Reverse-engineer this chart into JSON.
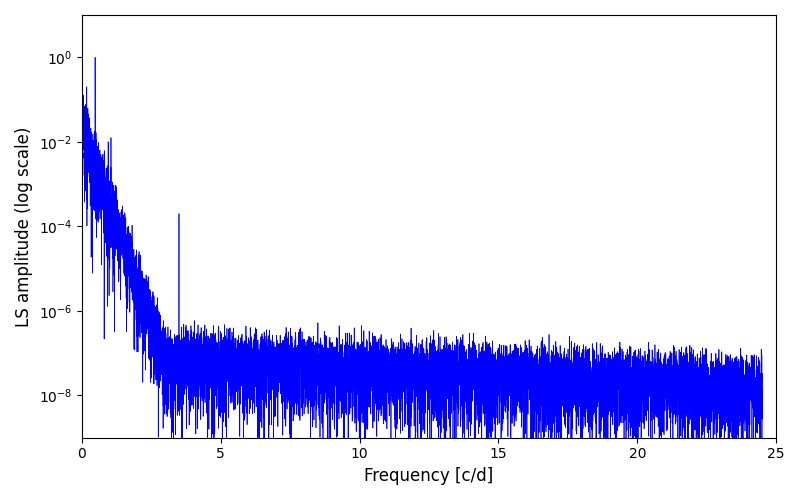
{
  "title": "",
  "xlabel": "Frequency [c/d]",
  "ylabel": "LS amplitude (log scale)",
  "xlim": [
    0,
    25
  ],
  "ylim": [
    3e-10,
    30
  ],
  "line_color": "#0000ff",
  "line_width": 0.5,
  "background_color": "#ffffff",
  "freq_max": 24.5,
  "n_points": 10000,
  "seed": 17,
  "yticks": [
    1e-08,
    1e-06,
    0.0001,
    0.01,
    1.0
  ],
  "xticks": [
    0,
    5,
    10,
    15,
    20,
    25
  ]
}
